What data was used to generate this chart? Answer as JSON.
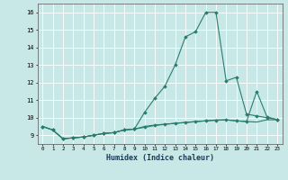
{
  "xlabel": "Humidex (Indice chaleur)",
  "x_values": [
    0,
    1,
    2,
    3,
    4,
    5,
    6,
    7,
    8,
    9,
    10,
    11,
    12,
    13,
    14,
    15,
    16,
    17,
    18,
    19,
    20,
    21,
    22,
    23
  ],
  "line1_y": [
    9.5,
    9.3,
    8.8,
    8.85,
    8.9,
    9.0,
    9.1,
    9.15,
    9.3,
    9.35,
    10.3,
    11.1,
    11.8,
    13.0,
    14.6,
    14.9,
    16.0,
    16.0,
    12.1,
    12.3,
    10.2,
    10.1,
    10.0,
    9.9
  ],
  "line2_y": [
    9.5,
    9.3,
    8.8,
    8.85,
    8.9,
    9.0,
    9.1,
    9.15,
    9.3,
    9.35,
    9.45,
    9.55,
    9.62,
    9.68,
    9.73,
    9.78,
    9.82,
    9.87,
    9.88,
    9.82,
    9.78,
    9.75,
    9.88,
    9.88
  ],
  "line3_y": [
    9.5,
    9.3,
    8.8,
    8.85,
    8.9,
    9.0,
    9.1,
    9.15,
    9.3,
    9.35,
    9.5,
    9.58,
    9.63,
    9.68,
    9.72,
    9.77,
    9.82,
    9.85,
    9.87,
    9.82,
    9.78,
    11.5,
    10.05,
    9.88
  ],
  "line_color": "#2a7d6e",
  "bg_color": "#c8e8e8",
  "grid_color": "#ffffff",
  "ylim": [
    8.5,
    16.5
  ],
  "xlim": [
    -0.5,
    23.5
  ],
  "yticks": [
    9,
    10,
    11,
    12,
    13,
    14,
    15,
    16
  ],
  "xticks": [
    0,
    1,
    2,
    3,
    4,
    5,
    6,
    7,
    8,
    9,
    10,
    11,
    12,
    13,
    14,
    15,
    16,
    17,
    18,
    19,
    20,
    21,
    22,
    23
  ]
}
